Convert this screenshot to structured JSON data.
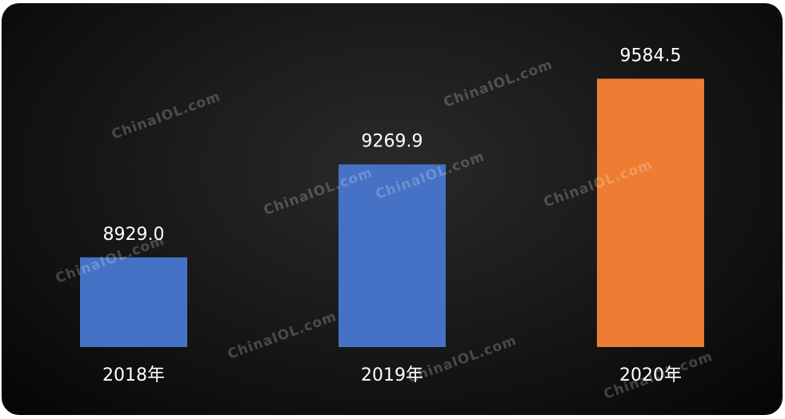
{
  "chart_data": {
    "type": "bar",
    "categories": [
      "2018年",
      "2019年",
      "2020年"
    ],
    "values": [
      8929.0,
      9269.9,
      9584.5
    ],
    "data_labels": [
      "8929.0",
      "9269.9",
      "9584.5"
    ],
    "colors": [
      "#4472C4",
      "#4472C4",
      "#ED7D31"
    ],
    "title": "",
    "xlabel": "",
    "ylabel": "",
    "ylim": [
      8600,
      9800
    ],
    "grid": false,
    "y_axis_visible": false
  },
  "watermark": "ChinaIOL.com"
}
